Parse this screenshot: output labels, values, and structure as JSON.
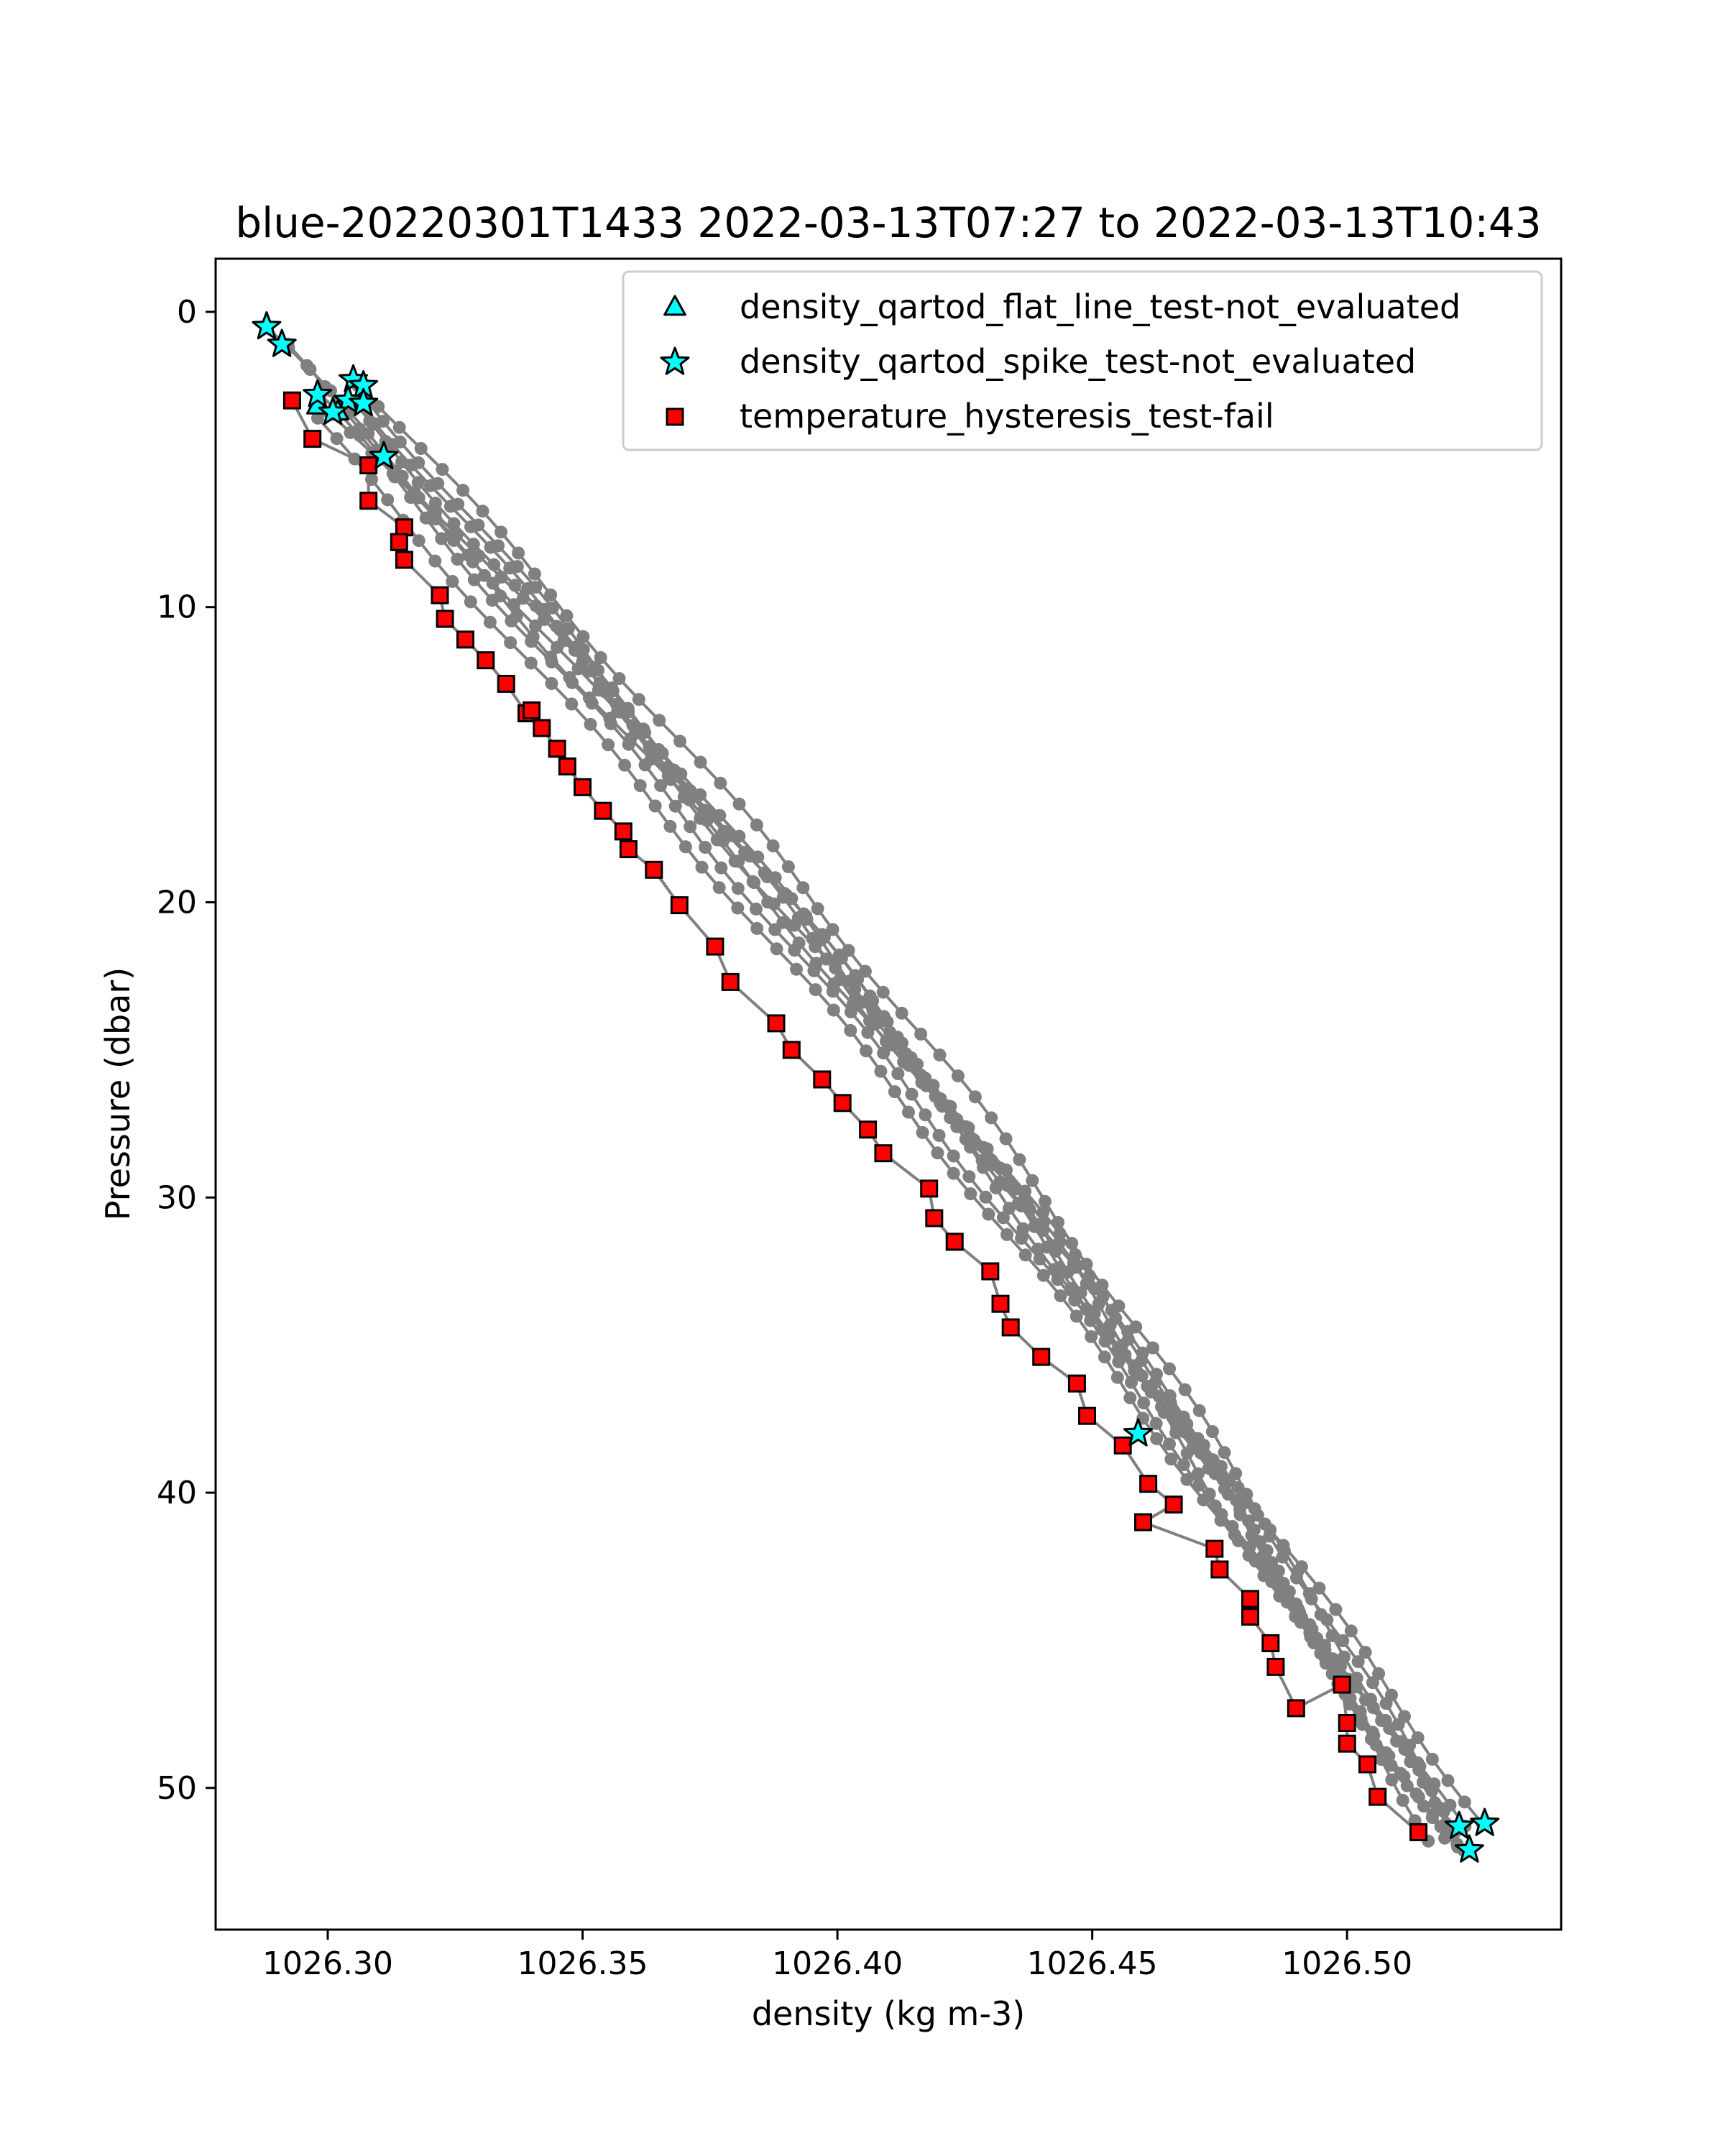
{
  "chart_data": {
    "type": "scatter",
    "title": "blue-20220301T1433 2022-03-13T07:27 to 2022-03-13T10:43",
    "xlabel": "density (kg m-3)",
    "ylabel": "Pressure (dbar)",
    "xlim": [
      1026.278,
      1026.542
    ],
    "ylim": [
      54.8,
      -1.8
    ],
    "y_inverted": true,
    "grid": false,
    "legend_position": "top-right",
    "xticks": [
      1026.3,
      1026.35,
      1026.4,
      1026.45,
      1026.5
    ],
    "xtick_labels": [
      "1026.30",
      "1026.35",
      "1026.40",
      "1026.45",
      "1026.50"
    ],
    "yticks": [
      0,
      10,
      20,
      30,
      40,
      50
    ],
    "ytick_labels": [
      "0",
      "10",
      "20",
      "30",
      "40",
      "50"
    ],
    "colors": {
      "profile_line": "#808080",
      "profile_point": "#808080",
      "flag_fill_cyan": "#00ffff",
      "flag_fill_red": "#ff0000",
      "marker_edge": "#000000"
    },
    "legend": [
      {
        "label": "density_qartod_flat_line_test-not_evaluated",
        "marker": "triangle",
        "color": "#00ffff"
      },
      {
        "label": "density_qartod_spike_test-not_evaluated",
        "marker": "star",
        "color": "#00ffff"
      },
      {
        "label": "temperature_hysteresis_test-fail",
        "marker": "square",
        "color": "#ff0000"
      }
    ],
    "profiles": [
      {
        "start": [
          1026.288,
          0.5
        ],
        "end": [
          1026.527,
          51.2
        ]
      },
      {
        "start": [
          1026.291,
          1.1
        ],
        "end": [
          1026.522,
          51.3
        ]
      },
      {
        "start": [
          1026.305,
          2.3
        ],
        "end": [
          1026.521,
          51.5
        ]
      },
      {
        "start": [
          1026.307,
          2.5
        ],
        "end": [
          1026.524,
          52.1
        ]
      },
      {
        "start": [
          1026.298,
          2.8
        ],
        "end": [
          1026.52,
          51.6
        ]
      },
      {
        "start": [
          1026.304,
          3.0
        ],
        "end": [
          1026.518,
          51.7
        ]
      },
      {
        "start": [
          1026.307,
          3.1
        ],
        "end": [
          1026.522,
          51.9
        ]
      },
      {
        "start": [
          1026.301,
          3.4
        ],
        "end": [
          1026.517,
          51.8
        ]
      },
      {
        "start": [
          1026.297,
          3.6
        ],
        "end": [
          1026.521,
          52.0
        ]
      }
    ],
    "flat_line_not_evaluated": [
      {
        "x": 1026.298,
        "y": 3.2
      },
      {
        "x": 1026.302,
        "y": 3.4
      }
    ],
    "spike_not_evaluated": [
      {
        "x": 1026.288,
        "y": 0.5
      },
      {
        "x": 1026.291,
        "y": 1.1
      },
      {
        "x": 1026.305,
        "y": 2.3
      },
      {
        "x": 1026.307,
        "y": 2.5
      },
      {
        "x": 1026.298,
        "y": 2.8
      },
      {
        "x": 1026.304,
        "y": 3.0
      },
      {
        "x": 1026.307,
        "y": 3.1
      },
      {
        "x": 1026.301,
        "y": 3.4
      },
      {
        "x": 1026.311,
        "y": 4.9
      },
      {
        "x": 1026.459,
        "y": 38.0
      },
      {
        "x": 1026.527,
        "y": 51.2
      },
      {
        "x": 1026.522,
        "y": 51.3
      },
      {
        "x": 1026.524,
        "y": 52.1
      }
    ],
    "hysteresis_fail": [
      {
        "x": 1026.293,
        "y": 3.0
      },
      {
        "x": 1026.297,
        "y": 4.3
      },
      {
        "x": 1026.308,
        "y": 5.2
      },
      {
        "x": 1026.308,
        "y": 6.4
      },
      {
        "x": 1026.315,
        "y": 7.3
      },
      {
        "x": 1026.314,
        "y": 7.8
      },
      {
        "x": 1026.315,
        "y": 8.4
      },
      {
        "x": 1026.322,
        "y": 9.6
      },
      {
        "x": 1026.323,
        "y": 10.4
      },
      {
        "x": 1026.327,
        "y": 11.1
      },
      {
        "x": 1026.331,
        "y": 11.8
      },
      {
        "x": 1026.335,
        "y": 12.6
      },
      {
        "x": 1026.339,
        "y": 13.6
      },
      {
        "x": 1026.34,
        "y": 13.5
      },
      {
        "x": 1026.342,
        "y": 14.1
      },
      {
        "x": 1026.345,
        "y": 14.8
      },
      {
        "x": 1026.347,
        "y": 15.4
      },
      {
        "x": 1026.35,
        "y": 16.1
      },
      {
        "x": 1026.354,
        "y": 16.9
      },
      {
        "x": 1026.358,
        "y": 17.6
      },
      {
        "x": 1026.359,
        "y": 18.2
      },
      {
        "x": 1026.364,
        "y": 18.9
      },
      {
        "x": 1026.369,
        "y": 20.1
      },
      {
        "x": 1026.376,
        "y": 21.5
      },
      {
        "x": 1026.379,
        "y": 22.7
      },
      {
        "x": 1026.388,
        "y": 24.1
      },
      {
        "x": 1026.391,
        "y": 25.0
      },
      {
        "x": 1026.397,
        "y": 26.0
      },
      {
        "x": 1026.401,
        "y": 26.8
      },
      {
        "x": 1026.406,
        "y": 27.7
      },
      {
        "x": 1026.409,
        "y": 28.5
      },
      {
        "x": 1026.418,
        "y": 29.7
      },
      {
        "x": 1026.419,
        "y": 30.7
      },
      {
        "x": 1026.423,
        "y": 31.5
      },
      {
        "x": 1026.43,
        "y": 32.5
      },
      {
        "x": 1026.432,
        "y": 33.6
      },
      {
        "x": 1026.434,
        "y": 34.4
      },
      {
        "x": 1026.44,
        "y": 35.4
      },
      {
        "x": 1026.447,
        "y": 36.3
      },
      {
        "x": 1026.449,
        "y": 37.4
      },
      {
        "x": 1026.456,
        "y": 38.4
      },
      {
        "x": 1026.461,
        "y": 39.7
      },
      {
        "x": 1026.466,
        "y": 40.4
      },
      {
        "x": 1026.46,
        "y": 41.0
      },
      {
        "x": 1026.474,
        "y": 41.9
      },
      {
        "x": 1026.475,
        "y": 42.6
      },
      {
        "x": 1026.481,
        "y": 43.6
      },
      {
        "x": 1026.481,
        "y": 44.2
      },
      {
        "x": 1026.485,
        "y": 45.1
      },
      {
        "x": 1026.486,
        "y": 45.9
      },
      {
        "x": 1026.49,
        "y": 47.3
      },
      {
        "x": 1026.499,
        "y": 46.5
      },
      {
        "x": 1026.5,
        "y": 47.8
      },
      {
        "x": 1026.5,
        "y": 48.5
      },
      {
        "x": 1026.504,
        "y": 49.2
      },
      {
        "x": 1026.506,
        "y": 50.3
      },
      {
        "x": 1026.514,
        "y": 51.5
      }
    ]
  }
}
